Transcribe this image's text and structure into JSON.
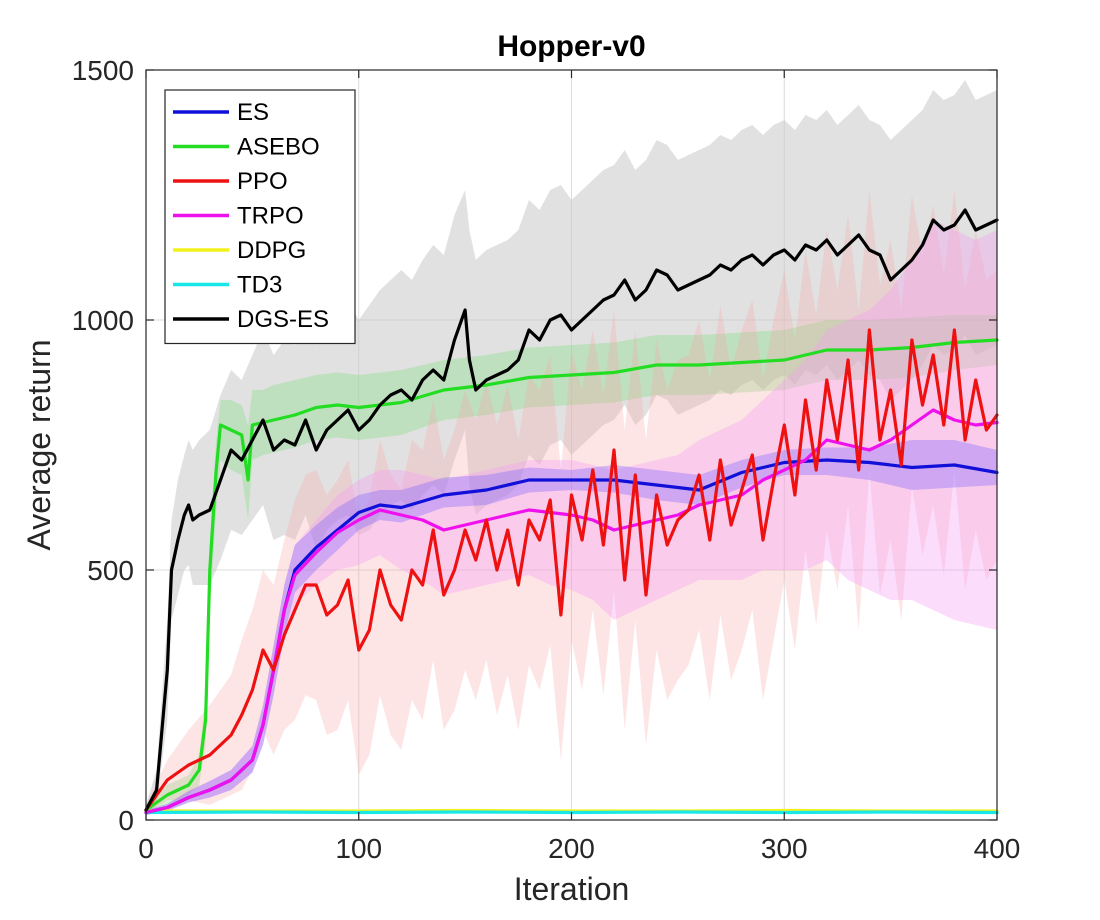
{
  "chart_data": {
    "type": "line",
    "title": "Hopper-v0",
    "xlabel": "Iteration",
    "ylabel": "Average return",
    "xlim": [
      0,
      400
    ],
    "ylim": [
      0,
      1500
    ],
    "xticks": [
      0,
      100,
      200,
      300,
      400
    ],
    "yticks": [
      0,
      500,
      1000,
      1500
    ],
    "xtick_labels": [
      "0",
      "100",
      "200",
      "300",
      "400"
    ],
    "ytick_labels": [
      "0",
      "500",
      "1000",
      "1500"
    ],
    "grid": true,
    "legend_position": "top-left",
    "series": [
      {
        "name": "ES",
        "color": "#1010d8",
        "band_color": "#7b61ff",
        "x": [
          0,
          10,
          20,
          30,
          40,
          50,
          55,
          60,
          65,
          70,
          80,
          90,
          100,
          110,
          120,
          140,
          160,
          180,
          200,
          220,
          240,
          260,
          280,
          300,
          320,
          340,
          360,
          380,
          400
        ],
        "y": [
          15,
          25,
          45,
          60,
          80,
          120,
          190,
          300,
          420,
          500,
          545,
          580,
          615,
          630,
          625,
          650,
          660,
          680,
          680,
          680,
          670,
          660,
          695,
          715,
          720,
          715,
          705,
          710,
          695
        ],
        "upper": [
          20,
          32,
          58,
          78,
          100,
          148,
          230,
          350,
          470,
          550,
          590,
          625,
          650,
          660,
          660,
          685,
          690,
          705,
          700,
          710,
          700,
          690,
          720,
          740,
          745,
          745,
          760,
          760,
          740
        ],
        "lower": [
          10,
          18,
          35,
          45,
          60,
          95,
          150,
          250,
          370,
          455,
          500,
          540,
          580,
          600,
          595,
          625,
          630,
          655,
          660,
          655,
          640,
          630,
          665,
          690,
          690,
          680,
          660,
          665,
          670
        ]
      },
      {
        "name": "ASEBO",
        "color": "#22dd22",
        "band_color": "#7fe07f",
        "x": [
          0,
          10,
          20,
          25,
          28,
          30,
          33,
          35,
          40,
          45,
          48,
          50,
          55,
          60,
          70,
          80,
          90,
          100,
          120,
          140,
          160,
          180,
          200,
          220,
          240,
          260,
          280,
          300,
          320,
          340,
          360,
          380,
          400
        ],
        "y": [
          20,
          50,
          70,
          100,
          200,
          500,
          700,
          790,
          780,
          770,
          680,
          790,
          795,
          800,
          810,
          825,
          830,
          825,
          835,
          860,
          870,
          885,
          890,
          895,
          910,
          910,
          915,
          920,
          940,
          940,
          945,
          955,
          960
        ],
        "upper": [
          28,
          70,
          90,
          130,
          250,
          560,
          760,
          840,
          840,
          830,
          790,
          860,
          860,
          870,
          880,
          890,
          895,
          890,
          900,
          920,
          930,
          945,
          950,
          955,
          970,
          970,
          975,
          980,
          1000,
          1000,
          1005,
          1010,
          1010
        ],
        "lower": [
          12,
          30,
          50,
          70,
          150,
          420,
          620,
          720,
          700,
          690,
          600,
          720,
          730,
          735,
          745,
          760,
          765,
          760,
          770,
          800,
          810,
          825,
          830,
          835,
          850,
          850,
          855,
          860,
          880,
          880,
          885,
          900,
          910
        ]
      },
      {
        "name": "PPO",
        "color": "#ee1111",
        "band_color": "#f7a8a8",
        "x": [
          0,
          10,
          20,
          30,
          40,
          45,
          50,
          55,
          60,
          65,
          70,
          75,
          80,
          85,
          90,
          95,
          100,
          105,
          110,
          115,
          120,
          125,
          130,
          135,
          140,
          145,
          150,
          155,
          160,
          165,
          170,
          175,
          180,
          185,
          190,
          195,
          200,
          205,
          210,
          215,
          220,
          225,
          230,
          235,
          240,
          245,
          250,
          255,
          260,
          265,
          270,
          275,
          280,
          285,
          290,
          295,
          300,
          305,
          310,
          315,
          320,
          325,
          330,
          335,
          340,
          345,
          350,
          355,
          360,
          365,
          370,
          375,
          380,
          385,
          390,
          395,
          400
        ],
        "y": [
          20,
          80,
          110,
          130,
          170,
          210,
          260,
          340,
          300,
          370,
          420,
          470,
          470,
          410,
          430,
          480,
          340,
          380,
          500,
          430,
          400,
          500,
          470,
          580,
          450,
          500,
          580,
          520,
          600,
          500,
          580,
          470,
          600,
          560,
          640,
          410,
          650,
          560,
          700,
          550,
          740,
          480,
          690,
          450,
          650,
          550,
          600,
          620,
          690,
          560,
          720,
          590,
          660,
          730,
          560,
          680,
          790,
          650,
          840,
          700,
          880,
          760,
          920,
          700,
          980,
          760,
          860,
          710,
          960,
          830,
          930,
          790,
          980,
          760,
          880,
          780,
          810
        ],
        "upper": [
          30,
          120,
          180,
          230,
          290,
          360,
          420,
          500,
          470,
          560,
          640,
          690,
          700,
          650,
          680,
          720,
          600,
          640,
          760,
          690,
          660,
          760,
          740,
          840,
          720,
          780,
          860,
          800,
          880,
          790,
          870,
          760,
          890,
          860,
          930,
          700,
          940,
          860,
          980,
          850,
          1020,
          780,
          980,
          760,
          960,
          860,
          920,
          930,
          1000,
          880,
          1030,
          900,
          980,
          1040,
          880,
          1000,
          1100,
          960,
          1140,
          1010,
          1180,
          1060,
          1210,
          1020,
          1260,
          1070,
          1160,
          1020,
          1250,
          1130,
          1230,
          1090,
          1260,
          1060,
          1180,
          1080,
          1100
        ],
        "lower": [
          10,
          40,
          40,
          30,
          50,
          60,
          100,
          180,
          130,
          180,
          200,
          250,
          240,
          170,
          180,
          240,
          90,
          130,
          250,
          170,
          140,
          240,
          200,
          320,
          180,
          220,
          300,
          240,
          320,
          210,
          290,
          180,
          310,
          260,
          350,
          120,
          360,
          260,
          420,
          250,
          460,
          180,
          400,
          150,
          340,
          240,
          280,
          310,
          380,
          240,
          410,
          280,
          340,
          420,
          240,
          360,
          480,
          340,
          540,
          390,
          580,
          460,
          630,
          380,
          700,
          450,
          560,
          400,
          670,
          530,
          630,
          490,
          700,
          460,
          580,
          480,
          520
        ]
      },
      {
        "name": "TRPO",
        "color": "#ee11ee",
        "band_color": "#f49cf4",
        "x": [
          0,
          10,
          20,
          30,
          40,
          50,
          55,
          60,
          65,
          70,
          80,
          90,
          100,
          110,
          120,
          130,
          140,
          150,
          160,
          170,
          180,
          190,
          200,
          210,
          220,
          230,
          240,
          250,
          260,
          270,
          280,
          290,
          300,
          310,
          320,
          330,
          340,
          350,
          360,
          370,
          380,
          390,
          400
        ],
        "y": [
          15,
          25,
          45,
          60,
          80,
          120,
          190,
          300,
          420,
          490,
          535,
          575,
          600,
          620,
          610,
          600,
          580,
          590,
          600,
          610,
          620,
          615,
          610,
          600,
          580,
          590,
          600,
          610,
          630,
          640,
          650,
          680,
          700,
          720,
          760,
          750,
          740,
          760,
          790,
          820,
          800,
          790,
          795
        ],
        "upper": [
          20,
          32,
          58,
          78,
          100,
          148,
          230,
          350,
          470,
          550,
          600,
          650,
          680,
          700,
          700,
          690,
          680,
          690,
          700,
          710,
          720,
          720,
          720,
          710,
          700,
          710,
          720,
          730,
          760,
          780,
          800,
          840,
          880,
          920,
          980,
          1000,
          1020,
          1060,
          1120,
          1200,
          1180,
          1160,
          1180
        ],
        "lower": [
          10,
          18,
          35,
          45,
          60,
          95,
          150,
          250,
          370,
          430,
          470,
          500,
          510,
          530,
          500,
          480,
          450,
          460,
          470,
          480,
          490,
          470,
          460,
          440,
          400,
          420,
          440,
          460,
          480,
          480,
          480,
          500,
          500,
          500,
          520,
          480,
          460,
          440,
          440,
          420,
          400,
          390,
          380
        ]
      },
      {
        "name": "DDPG",
        "color": "#f2f21a",
        "x": [
          0,
          50,
          100,
          150,
          200,
          250,
          300,
          350,
          400
        ],
        "y": [
          18,
          18,
          18,
          19,
          18,
          18,
          19,
          18,
          18
        ]
      },
      {
        "name": "TD3",
        "color": "#19e8e8",
        "x": [
          0,
          50,
          100,
          150,
          200,
          250,
          300,
          350,
          400
        ],
        "y": [
          15,
          16,
          15,
          16,
          15,
          16,
          15,
          16,
          15
        ]
      },
      {
        "name": "DGS-ES",
        "color": "#000000",
        "band_color": "#c8c8c8",
        "x": [
          0,
          5,
          10,
          12,
          15,
          18,
          20,
          22,
          25,
          30,
          35,
          40,
          45,
          50,
          55,
          60,
          65,
          70,
          75,
          80,
          85,
          90,
          95,
          100,
          105,
          110,
          115,
          120,
          125,
          130,
          135,
          140,
          145,
          150,
          152,
          155,
          160,
          165,
          170,
          175,
          180,
          185,
          190,
          195,
          200,
          205,
          210,
          215,
          220,
          225,
          230,
          235,
          240,
          245,
          250,
          255,
          260,
          265,
          270,
          275,
          280,
          285,
          290,
          295,
          300,
          305,
          310,
          315,
          320,
          325,
          330,
          335,
          340,
          345,
          350,
          355,
          360,
          365,
          370,
          375,
          380,
          385,
          390,
          395,
          400
        ],
        "y": [
          20,
          60,
          300,
          500,
          560,
          610,
          630,
          600,
          610,
          620,
          680,
          740,
          720,
          760,
          800,
          740,
          760,
          750,
          800,
          740,
          780,
          800,
          820,
          780,
          800,
          830,
          850,
          860,
          840,
          880,
          900,
          880,
          960,
          1020,
          920,
          860,
          880,
          890,
          900,
          920,
          980,
          960,
          1000,
          1010,
          980,
          1000,
          1020,
          1040,
          1050,
          1080,
          1040,
          1060,
          1100,
          1090,
          1060,
          1070,
          1080,
          1090,
          1110,
          1100,
          1120,
          1130,
          1110,
          1130,
          1140,
          1120,
          1150,
          1140,
          1160,
          1130,
          1150,
          1170,
          1140,
          1130,
          1080,
          1100,
          1120,
          1150,
          1200,
          1180,
          1190,
          1220,
          1180,
          1190,
          1200
        ],
        "upper": [
          30,
          100,
          400,
          600,
          680,
          730,
          760,
          740,
          760,
          780,
          850,
          900,
          880,
          930,
          980,
          930,
          960,
          950,
          1000,
          950,
          990,
          1010,
          1040,
          1000,
          1030,
          1060,
          1080,
          1100,
          1080,
          1120,
          1150,
          1130,
          1210,
          1260,
          1180,
          1120,
          1140,
          1150,
          1160,
          1180,
          1240,
          1220,
          1260,
          1270,
          1240,
          1260,
          1280,
          1300,
          1310,
          1340,
          1300,
          1320,
          1360,
          1350,
          1320,
          1330,
          1340,
          1350,
          1370,
          1360,
          1380,
          1390,
          1370,
          1390,
          1400,
          1380,
          1410,
          1400,
          1420,
          1390,
          1410,
          1430,
          1400,
          1390,
          1360,
          1380,
          1400,
          1420,
          1460,
          1440,
          1450,
          1480,
          1440,
          1450,
          1460
        ],
        "lower": [
          10,
          30,
          200,
          400,
          450,
          500,
          510,
          470,
          470,
          470,
          520,
          580,
          570,
          600,
          630,
          560,
          570,
          560,
          610,
          540,
          580,
          600,
          610,
          570,
          580,
          610,
          630,
          640,
          620,
          650,
          670,
          650,
          720,
          780,
          670,
          610,
          630,
          640,
          650,
          670,
          730,
          710,
          750,
          760,
          730,
          750,
          770,
          790,
          800,
          830,
          790,
          810,
          850,
          840,
          810,
          820,
          830,
          840,
          860,
          850,
          870,
          880,
          860,
          880,
          890,
          870,
          900,
          890,
          910,
          880,
          900,
          920,
          890,
          880,
          840,
          860,
          880,
          910,
          950,
          930,
          940,
          970,
          930,
          940,
          950
        ]
      }
    ]
  }
}
